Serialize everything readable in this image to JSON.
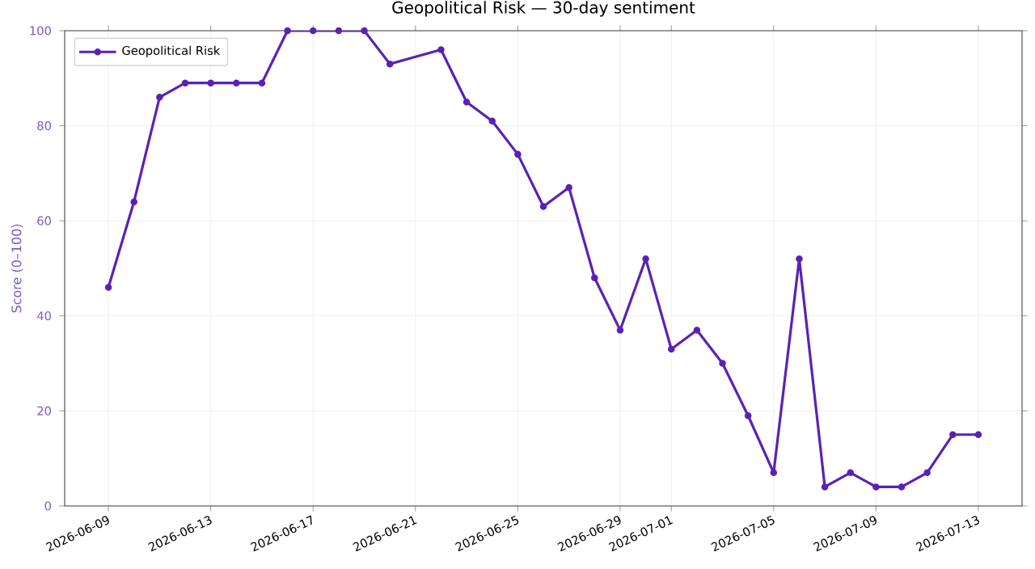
{
  "chart_data": {
    "type": "line",
    "title": "Geopolitical Risk — 30-day sentiment",
    "ylabel": "Score (0–100)",
    "x": [
      "2026-06-09",
      "2026-06-10",
      "2026-06-11",
      "2026-06-12",
      "2026-06-13",
      "2026-06-14",
      "2026-06-15",
      "2026-06-16",
      "2026-06-17",
      "2026-06-18",
      "2026-06-19",
      "2026-06-20",
      "2026-06-22",
      "2026-06-23",
      "2026-06-24",
      "2026-06-25",
      "2026-06-26",
      "2026-06-27",
      "2026-06-28",
      "2026-06-29",
      "2026-06-30",
      "2026-07-01",
      "2026-07-02",
      "2026-07-03",
      "2026-07-04",
      "2026-07-05",
      "2026-07-06",
      "2026-07-07",
      "2026-07-08",
      "2026-07-09",
      "2026-07-10",
      "2026-07-11",
      "2026-07-12",
      "2026-07-13"
    ],
    "series": [
      {
        "name": "Geopolitical Risk",
        "color": "#5b21b6",
        "values": [
          46,
          64,
          86,
          89,
          89,
          89,
          89,
          100,
          100,
          100,
          100,
          93,
          96,
          85,
          81,
          74,
          63,
          67,
          48,
          37,
          52,
          33,
          37,
          30,
          19,
          7,
          52,
          4,
          7,
          4,
          4,
          7,
          15,
          15
        ]
      }
    ],
    "xlim": [
      "2026-06-07T07:00",
      "2026-07-14T17:00"
    ],
    "xticks": [
      "2026-06-09",
      "2026-06-13",
      "2026-06-17",
      "2026-06-21",
      "2026-06-25",
      "2026-06-29",
      "2026-07-01",
      "2026-07-05",
      "2026-07-09",
      "2026-07-13"
    ],
    "ylim": [
      0,
      100
    ],
    "yticks": [
      0,
      20,
      40,
      60,
      80,
      100
    ],
    "grid": true,
    "legend": "top left",
    "marker": "circle",
    "line_style": "solid"
  }
}
